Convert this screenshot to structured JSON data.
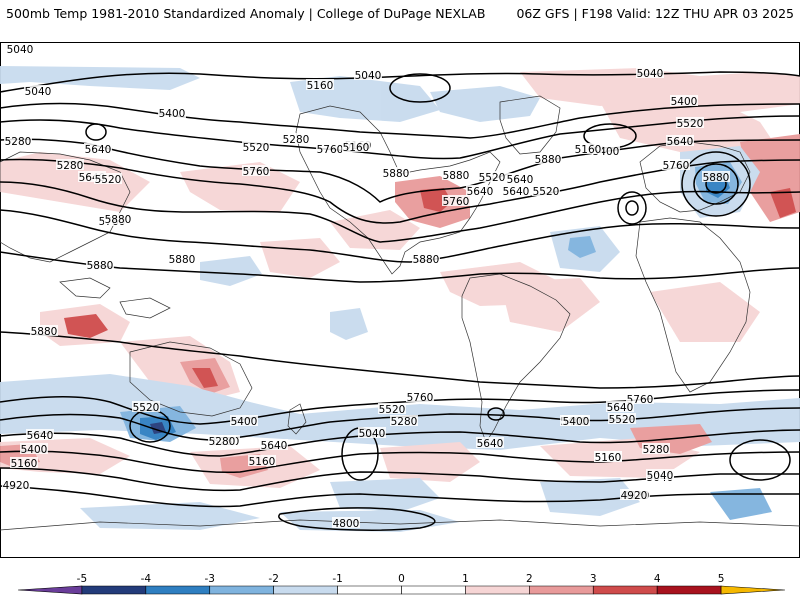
{
  "header": {
    "title_left": "500mb Temp 1981-2010 Standardized Anomaly | College of DuPage NEXLAB",
    "title_right": "06Z GFS | F198 Valid: 12Z THU APR 03 2025"
  },
  "colors": {
    "anom_neg_5": "#6a3d9a",
    "anom_neg_4": "#233b7a",
    "anom_neg_3": "#2f7fc1",
    "anom_neg_2": "#7fb3de",
    "anom_neg_1": "#c8dbee",
    "anom_0": "#ffffff",
    "anom_pos_1": "#f6d5d5",
    "anom_pos_2": "#e89a9a",
    "anom_pos_3": "#cf4b4b",
    "anom_pos_4": "#a8121e",
    "anom_pos_5": "#f5b800",
    "contour": "#000000",
    "coastline": "#333333"
  },
  "colorbar": {
    "ticks": [
      "-5",
      "-4",
      "-3",
      "-2",
      "-1",
      "0",
      "1",
      "2",
      "3",
      "4",
      "5"
    ]
  },
  "contour_labels": [
    "5040",
    "5040",
    "5040",
    "5160",
    "5400",
    "5280",
    "5640",
    "5520",
    "5760",
    "5880",
    "5400",
    "5280",
    "5640",
    "5520",
    "5160",
    "5760",
    "5880",
    "5880",
    "5760",
    "5640",
    "5520",
    "5400",
    "5280",
    "5160",
    "5040",
    "5640",
    "5880",
    "5160",
    "5520",
    "5640",
    "5760",
    "5880",
    "5520",
    "5640",
    "5760",
    "5880",
    "5880",
    "5880",
    "5880",
    "5760",
    "5520",
    "5640",
    "5400",
    "5160",
    "5280",
    "5040",
    "5640",
    "5280",
    "5400",
    "5040",
    "5160",
    "4920",
    "4920",
    "4800",
    "5760",
    "5640",
    "5520",
    "5400",
    "5280",
    "5160",
    "5040",
    "4920",
    "5520",
    "5640",
    "5400",
    "5160",
    "5280"
  ]
}
